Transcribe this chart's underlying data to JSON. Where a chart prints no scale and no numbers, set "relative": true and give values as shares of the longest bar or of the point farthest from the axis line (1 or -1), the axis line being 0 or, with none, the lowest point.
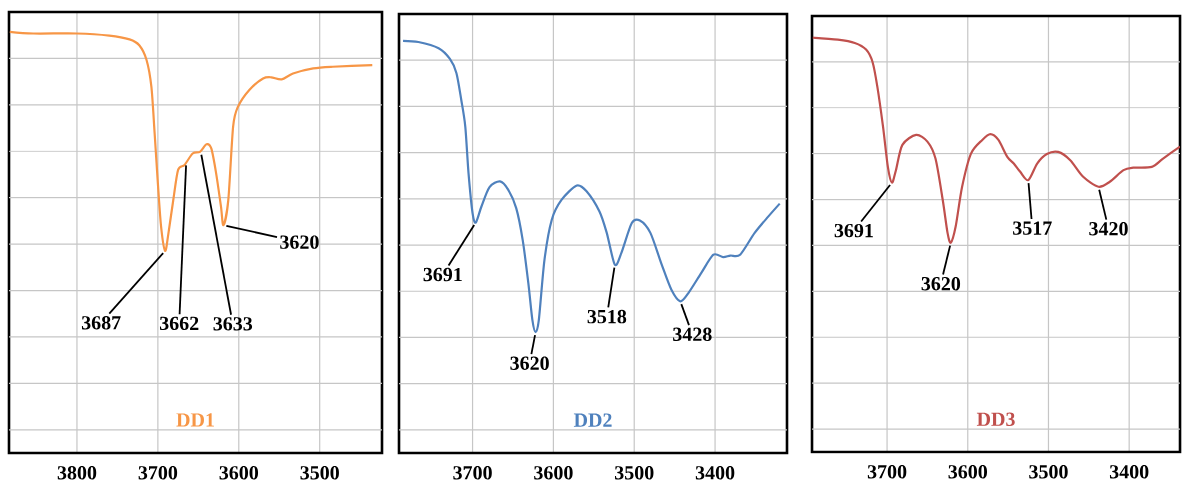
{
  "chart_data": [
    {
      "type": "line",
      "title": "DD1",
      "relative": true,
      "grid": true,
      "xlim": [
        3884,
        3423
      ],
      "xticks": [
        3800,
        3700,
        3600,
        3500
      ],
      "series": [
        {
          "color": "#f79646",
          "x": [
            3883,
            3854,
            3800,
            3760,
            3735,
            3723,
            3714,
            3708,
            3704,
            3700,
            3696,
            3691,
            3687,
            3681,
            3675,
            3667,
            3657,
            3648,
            3640,
            3634,
            3628,
            3622,
            3619,
            3613,
            3607,
            3601,
            3587,
            3570,
            3560,
            3547,
            3533,
            3508,
            3484,
            3435
          ],
          "values": [
            1.0,
            0.996,
            0.996,
            0.991,
            0.982,
            0.968,
            0.933,
            0.869,
            0.759,
            0.64,
            0.537,
            0.48,
            0.521,
            0.6,
            0.672,
            0.684,
            0.711,
            0.715,
            0.733,
            0.723,
            0.664,
            0.585,
            0.541,
            0.6,
            0.775,
            0.822,
            0.862,
            0.889,
            0.892,
            0.887,
            0.901,
            0.913,
            0.917,
            0.921
          ]
        }
      ],
      "annotations": [
        {
          "text": "3687",
          "x": 3691,
          "y": 0.48
        },
        {
          "text": "3662",
          "x": 3665,
          "y": 0.69
        },
        {
          "text": "3633",
          "x": 3647,
          "y": 0.715
        },
        {
          "text": "3620",
          "x": 3619,
          "y": 0.541
        }
      ]
    },
    {
      "type": "line",
      "title": "DD2",
      "relative": true,
      "grid": true,
      "xlim": [
        3791,
        3311
      ],
      "xticks": [
        3700,
        3600,
        3500,
        3400
      ],
      "series": [
        {
          "color": "#4f81bd",
          "x": [
            3786,
            3767,
            3742,
            3728,
            3720,
            3714,
            3709,
            3705,
            3700,
            3696,
            3689,
            3679,
            3666,
            3656,
            3646,
            3638,
            3631,
            3626,
            3622,
            3618,
            3611,
            3602,
            3590,
            3571,
            3559,
            3543,
            3534,
            3524,
            3516,
            3503,
            3493,
            3480,
            3466,
            3454,
            3443,
            3433,
            3417,
            3402,
            3390,
            3381,
            3369,
            3351,
            3334,
            3320
          ],
          "values": [
            1.0,
            0.997,
            0.982,
            0.956,
            0.922,
            0.857,
            0.792,
            0.679,
            0.582,
            0.559,
            0.598,
            0.645,
            0.659,
            0.639,
            0.594,
            0.517,
            0.412,
            0.323,
            0.293,
            0.323,
            0.469,
            0.566,
            0.614,
            0.649,
            0.635,
            0.586,
            0.534,
            0.457,
            0.485,
            0.558,
            0.564,
            0.534,
            0.457,
            0.396,
            0.368,
            0.388,
            0.437,
            0.481,
            0.475,
            0.479,
            0.481,
            0.534,
            0.574,
            0.605
          ]
        }
      ],
      "annotations": [
        {
          "text": "3691",
          "x": 3696,
          "y": 0.559
        },
        {
          "text": "3620",
          "x": 3622,
          "y": 0.293
        },
        {
          "text": "3518",
          "x": 3524,
          "y": 0.457
        },
        {
          "text": "3428",
          "x": 3443,
          "y": 0.368
        }
      ]
    },
    {
      "type": "line",
      "title": "DD3",
      "relative": true,
      "grid": true,
      "xlim": [
        3793,
        3337
      ],
      "xticks": [
        3700,
        3600,
        3500,
        3400
      ],
      "series": [
        {
          "color": "#c0504d",
          "x": [
            3792,
            3761,
            3740,
            3726,
            3718,
            3712,
            3705,
            3699,
            3694,
            3689,
            3681,
            3664,
            3650,
            3640,
            3631,
            3625,
            3621,
            3615,
            3607,
            3596,
            3582,
            3572,
            3562,
            3551,
            3543,
            3535,
            3525,
            3514,
            3502,
            3488,
            3473,
            3457,
            3438,
            3424,
            3407,
            3395,
            3372,
            3358,
            3337
          ],
          "values": [
            1.0,
            0.995,
            0.987,
            0.971,
            0.941,
            0.881,
            0.785,
            0.688,
            0.65,
            0.68,
            0.741,
            0.765,
            0.749,
            0.708,
            0.608,
            0.528,
            0.505,
            0.544,
            0.64,
            0.72,
            0.753,
            0.767,
            0.753,
            0.712,
            0.696,
            0.676,
            0.656,
            0.696,
            0.719,
            0.724,
            0.704,
            0.664,
            0.64,
            0.652,
            0.68,
            0.686,
            0.688,
            0.708,
            0.737
          ]
        }
      ],
      "annotations": [
        {
          "text": "3691",
          "x": 3694,
          "y": 0.65
        },
        {
          "text": "3620",
          "x": 3621,
          "y": 0.505
        },
        {
          "text": "3517",
          "x": 3525,
          "y": 0.656
        },
        {
          "text": "3420",
          "x": 3438,
          "y": 0.64
        }
      ]
    }
  ]
}
